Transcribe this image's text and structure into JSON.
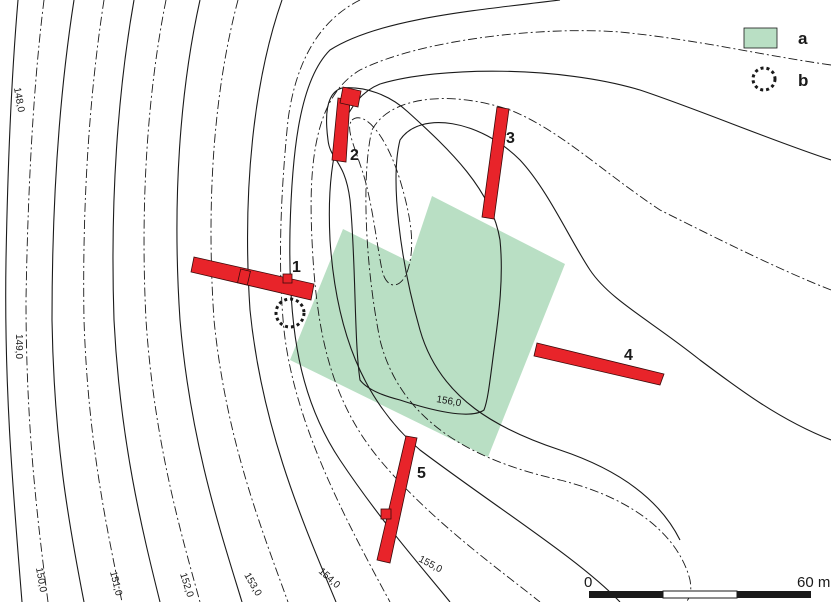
{
  "colors": {
    "area_fill": "#b9dfc4",
    "trench_fill": "#e8242a",
    "contour_stroke": "#1a1a1a"
  },
  "contour_labels": {
    "c148": "148,0",
    "c149": "149,0",
    "c150": "150,0",
    "c151": "151,0",
    "c152": "152,0",
    "c153": "153,0",
    "c154": "154,0",
    "c155": "155,0",
    "c156": "156,0"
  },
  "trenches": {
    "t1": "1",
    "t2": "2",
    "t3": "3",
    "t4": "4",
    "t5": "5"
  },
  "legend": {
    "a_label": "a",
    "b_label": "b",
    "a_icon": "green-square-icon",
    "b_icon": "dotted-circle-icon"
  },
  "scale_bar": {
    "start_label": "0",
    "end_label": "60 m"
  }
}
